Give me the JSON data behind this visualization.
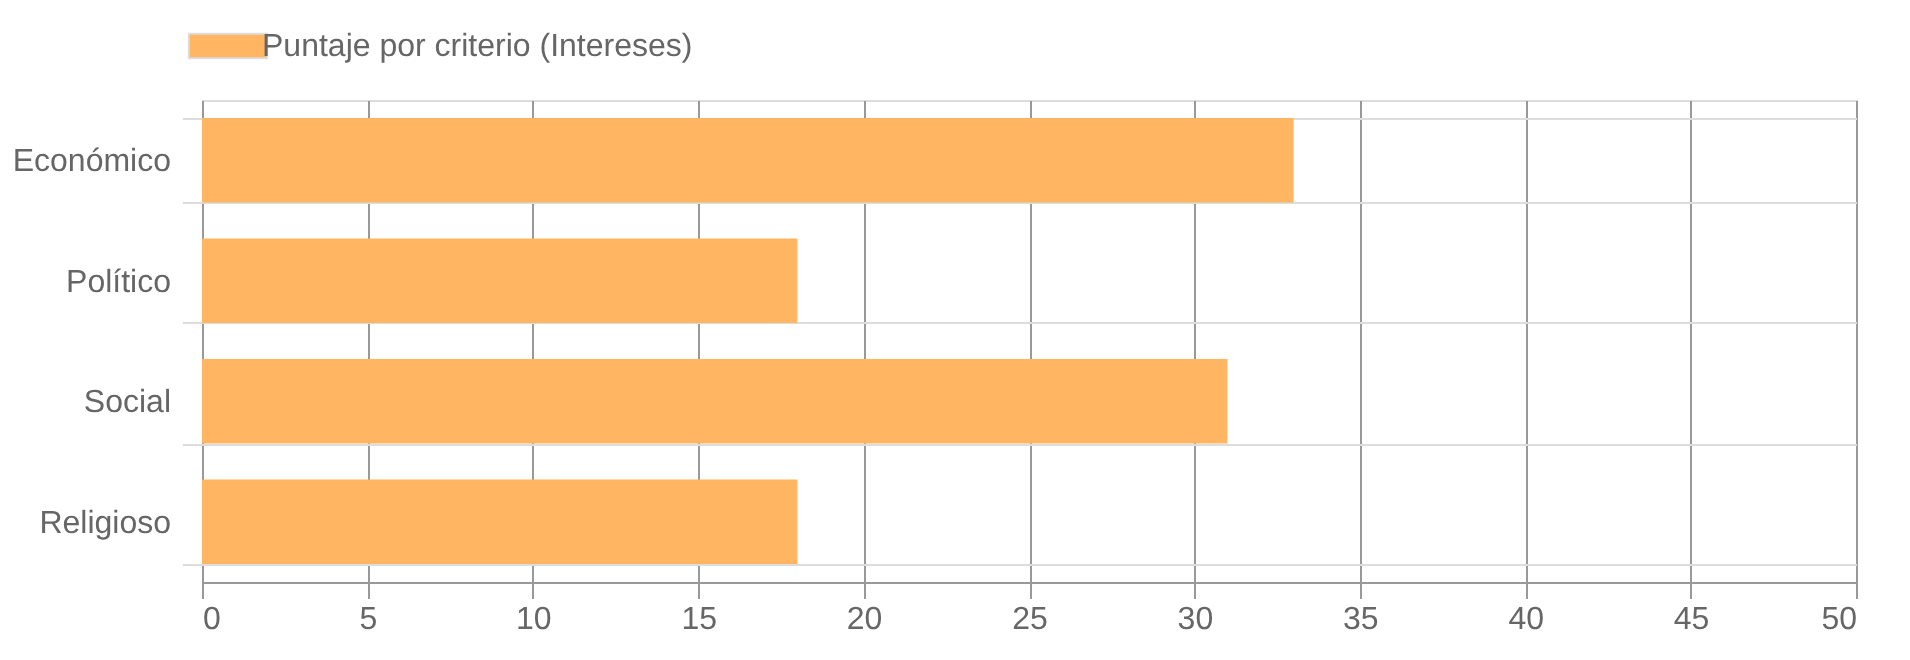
{
  "chart_data": {
    "type": "bar",
    "orientation": "horizontal",
    "categories": [
      "Económico",
      "Político",
      "Social",
      "Religioso"
    ],
    "series": [
      {
        "name": "Puntaje por criterio (Intereses)",
        "color": "#ffb562",
        "values": [
          33,
          18,
          31,
          18
        ]
      }
    ],
    "xlim": [
      0,
      50
    ],
    "xticks": [
      0,
      5,
      10,
      15,
      20,
      25,
      30,
      35,
      40,
      45,
      50
    ],
    "grid": true,
    "legend": "top"
  }
}
